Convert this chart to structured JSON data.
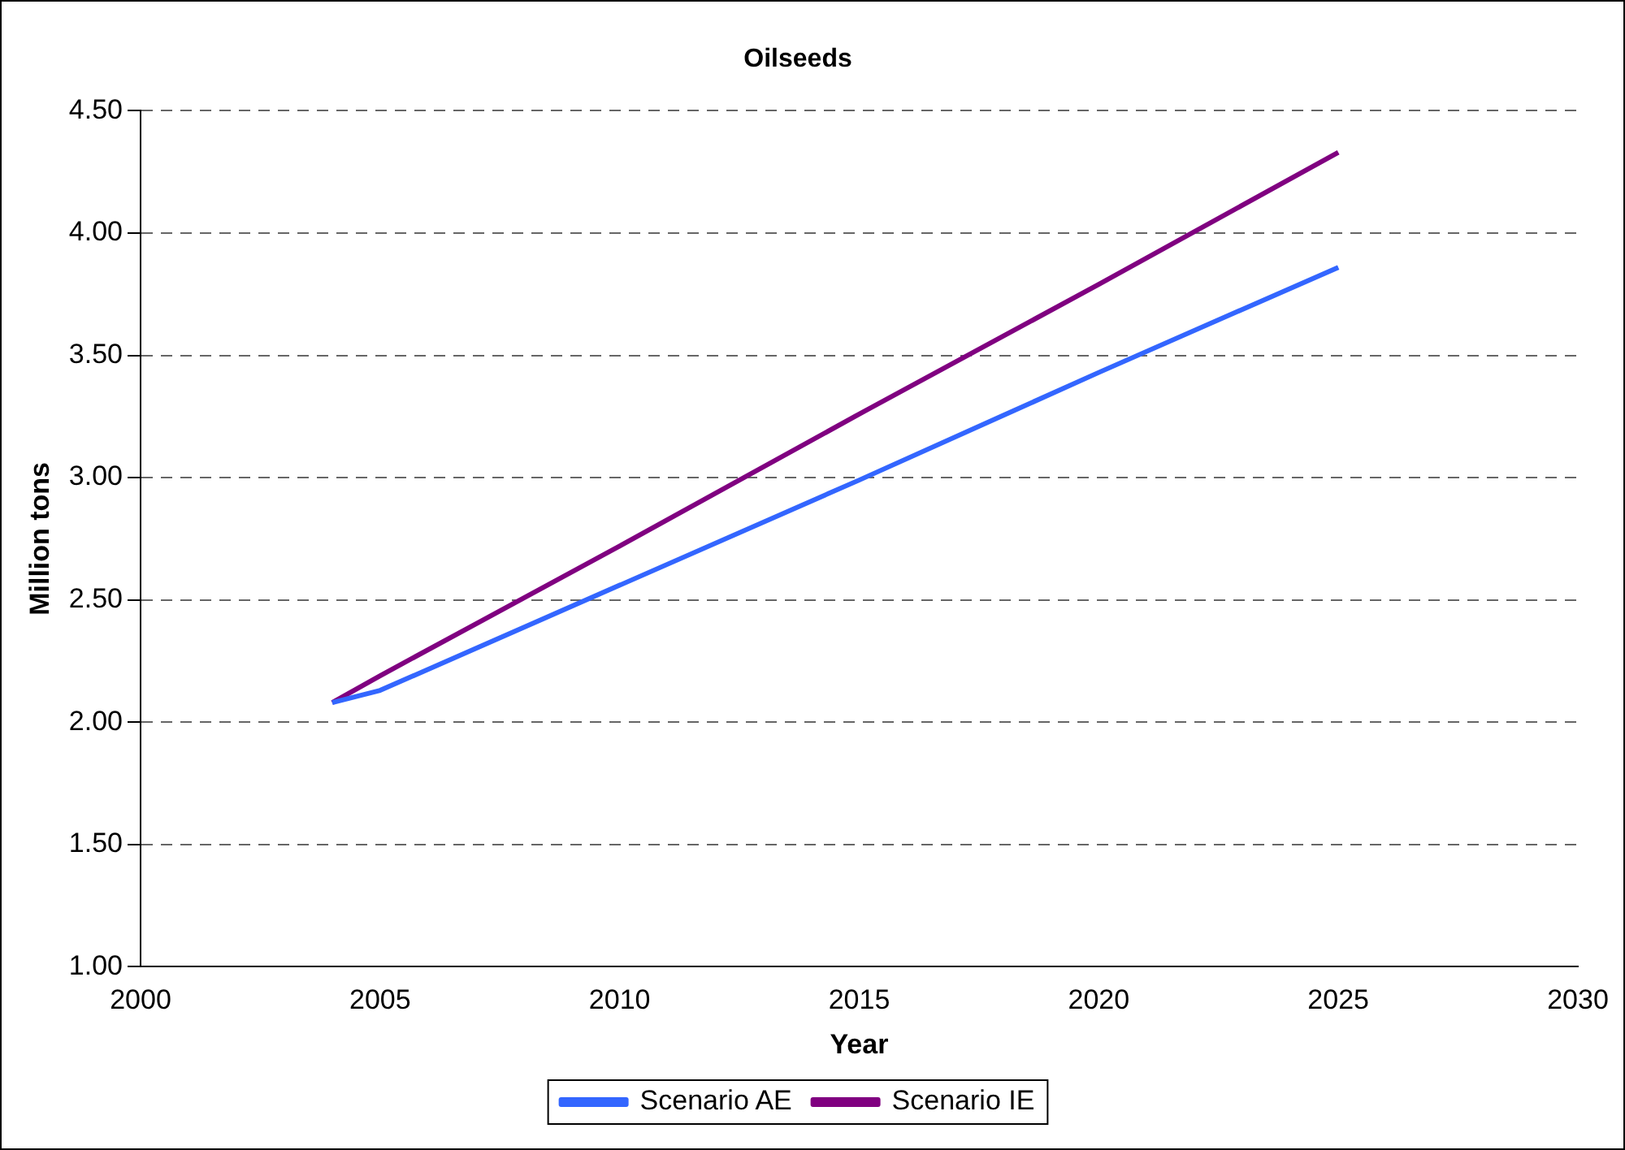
{
  "chart_data": {
    "type": "line",
    "title": "Oilseeds",
    "xlabel": "Year",
    "ylabel": "Million tons",
    "x": [
      2004,
      2005,
      2010,
      2015,
      2020,
      2025
    ],
    "series": [
      {
        "name": "Scenario AE",
        "color": "#3366ff",
        "values": [
          2.08,
          2.13,
          2.56,
          2.99,
          3.43,
          3.86
        ]
      },
      {
        "name": "Scenario IE",
        "color": "#800080",
        "values": [
          2.08,
          2.19,
          2.72,
          3.26,
          3.79,
          4.33
        ]
      }
    ],
    "xlim": [
      2000,
      2030
    ],
    "xticks": [
      2000,
      2005,
      2010,
      2015,
      2020,
      2025,
      2030
    ],
    "ylim": [
      1,
      4.5
    ],
    "yticks": [
      {
        "value": 1,
        "label": "1.00"
      },
      {
        "value": 1.5,
        "label": "1.50"
      },
      {
        "value": 2,
        "label": "2.00"
      },
      {
        "value": 2.5,
        "label": "2.50"
      },
      {
        "value": 3,
        "label": "3.00"
      },
      {
        "value": 3.5,
        "label": "3.50"
      },
      {
        "value": 4,
        "label": "4.00"
      },
      {
        "value": 4.5,
        "label": "4.50"
      }
    ],
    "grid": "y",
    "legend": "bottom",
    "marker": "none",
    "line_style": "solid"
  }
}
